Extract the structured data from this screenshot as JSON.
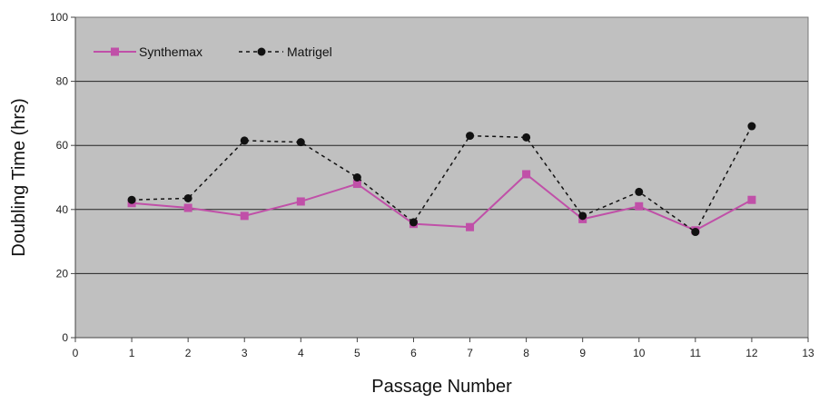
{
  "chart_data": {
    "type": "line",
    "title": "",
    "xlabel": "Passage Number",
    "ylabel": "Doubling Time (hrs)",
    "xlim": [
      0,
      13
    ],
    "ylim": [
      0,
      100
    ],
    "xticks": [
      0,
      1,
      2,
      3,
      4,
      5,
      6,
      7,
      8,
      9,
      10,
      11,
      12,
      13
    ],
    "yticks": [
      0,
      20,
      40,
      60,
      80,
      100
    ],
    "grid": "horizontal",
    "legend_position": "top-left",
    "plot_background": "#c0c0c0",
    "x": [
      1,
      2,
      3,
      4,
      5,
      6,
      7,
      8,
      9,
      10,
      11,
      12
    ],
    "series": [
      {
        "name": "Synthemax",
        "values": [
          42,
          40.5,
          38,
          42.5,
          48,
          35.5,
          34.5,
          51,
          37,
          41,
          33.5,
          43
        ],
        "color": "#c050a8",
        "line_style": "solid",
        "marker": "square"
      },
      {
        "name": "Matrigel",
        "values": [
          43,
          43.5,
          61.5,
          61,
          50,
          36,
          63,
          62.5,
          38,
          45.5,
          33,
          66
        ],
        "color": "#111111",
        "line_style": "dashed",
        "marker": "circle"
      }
    ]
  }
}
